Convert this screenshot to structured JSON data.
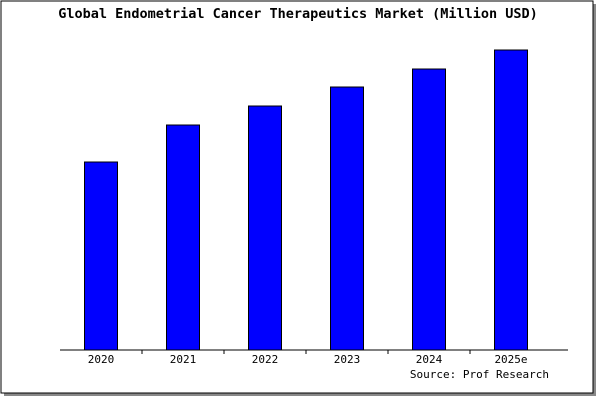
{
  "chart_data": {
    "type": "bar",
    "title": "Global Endometrial Cancer Therapeutics Market (Million USD)",
    "categories": [
      "2020",
      "2021",
      "2022",
      "2023",
      "2024",
      "2025e"
    ],
    "values": [
      188,
      225,
      244,
      263,
      281,
      300
    ],
    "color": "#0000ff",
    "ylim": [
      0,
      302
    ],
    "source": "Source: Prof Research"
  }
}
